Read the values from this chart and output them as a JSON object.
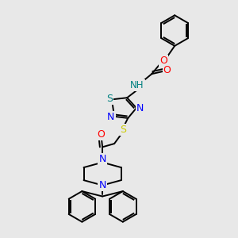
{
  "background_color": "#e8e8e8",
  "bond_color": "#000000",
  "atom_colors": {
    "N": "#0000ff",
    "O": "#ff0000",
    "S_yellow": "#cccc00",
    "S_teal": "#008080",
    "NH": "#008080",
    "C": "#000000"
  },
  "dpi": 100,
  "lw": 1.4
}
